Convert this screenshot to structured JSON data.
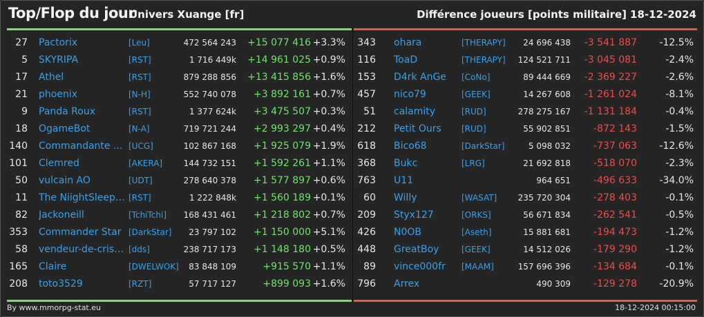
{
  "header": {
    "title": "Top/Flop du jour",
    "universe": "Univers Xuange [fr]",
    "metric": "Différence joueurs [points militaire]",
    "date": "18-12-2024"
  },
  "footer": {
    "credit": "By www.mmorpg-stat.eu",
    "timestamp": "18-12-2024 00:15:00"
  },
  "colors": {
    "positive": "#6fe36a",
    "negative": "#f04b4b",
    "link": "#3aa0e6"
  },
  "top": [
    {
      "rank": "27",
      "name": "Pactorix",
      "ally": "[Leu]",
      "points": "472 564 243",
      "diff": "+15 077 416",
      "pct": "+3.3%"
    },
    {
      "rank": "5",
      "name": "SKYRIPA",
      "ally": "[RST]",
      "points": "1 716 449k",
      "diff": "+14 961 025",
      "pct": "+0.9%"
    },
    {
      "rank": "17",
      "name": "Athel",
      "ally": "[RST]",
      "points": "879 288 856",
      "diff": "+13 415 856",
      "pct": "+1.6%"
    },
    {
      "rank": "21",
      "name": "phoenix",
      "ally": "[N-H]",
      "points": "552 740 078",
      "diff": "+3 892 161",
      "pct": "+0.7%"
    },
    {
      "rank": "9",
      "name": "Panda Roux",
      "ally": "[RST]",
      "points": "1 377 624k",
      "diff": "+3 475 507",
      "pct": "+0.3%"
    },
    {
      "rank": "18",
      "name": "OgameBot",
      "ally": "[N-A]",
      "points": "719 721 244",
      "diff": "+2 993 297",
      "pct": "+0.4%"
    },
    {
      "rank": "140",
      "name": "Commandante ...",
      "ally": "[UCG]",
      "points": "102 867 168",
      "diff": "+1 925 079",
      "pct": "+1.9%"
    },
    {
      "rank": "101",
      "name": "Clemred",
      "ally": "[AKERA]",
      "points": "144 732 151",
      "diff": "+1 592 261",
      "pct": "+1.1%"
    },
    {
      "rank": "50",
      "name": "vulcain AO",
      "ally": "[UDT]",
      "points": "278 640 378",
      "diff": "+1 577 897",
      "pct": "+0.6%"
    },
    {
      "rank": "11",
      "name": "The NiightSleepe...",
      "ally": "[RST]",
      "points": "1 222 848k",
      "diff": "+1 560 189",
      "pct": "+0.1%"
    },
    {
      "rank": "82",
      "name": "Jackoneill",
      "ally": "[TchiTchi]",
      "points": "168 431 461",
      "diff": "+1 218 802",
      "pct": "+0.7%"
    },
    {
      "rank": "353",
      "name": "Commander Star",
      "ally": "[DarkStar]",
      "points": "23 797 102",
      "diff": "+1 150 000",
      "pct": "+5.1%"
    },
    {
      "rank": "58",
      "name": "vendeur-de-crista...",
      "ally": "[dds]",
      "points": "238 717 173",
      "diff": "+1 148 180",
      "pct": "+0.5%"
    },
    {
      "rank": "165",
      "name": "Claire",
      "ally": "[DWELWOK]",
      "points": "83 848 109",
      "diff": "+915 570",
      "pct": "+1.1%"
    },
    {
      "rank": "208",
      "name": "toto3529",
      "ally": "[RZT]",
      "points": "57 717 127",
      "diff": "+899 093",
      "pct": "+1.6%"
    }
  ],
  "flop": [
    {
      "rank": "343",
      "name": "ohara",
      "ally": "[THERAPY]",
      "points": "24 696 438",
      "diff": "-3 541 887",
      "pct": "-12.5%"
    },
    {
      "rank": "116",
      "name": "ToaD",
      "ally": "[THERAPY]",
      "points": "124 521 711",
      "diff": "-3 045 081",
      "pct": "-2.4%"
    },
    {
      "rank": "153",
      "name": "D4rk AnGe",
      "ally": "[CoNo]",
      "points": "89 444 669",
      "diff": "-2 369 227",
      "pct": "-2.6%"
    },
    {
      "rank": "457",
      "name": "nico79",
      "ally": "[GEEK]",
      "points": "14 267 608",
      "diff": "-1 261 024",
      "pct": "-8.1%"
    },
    {
      "rank": "51",
      "name": "calamity",
      "ally": "[RUD]",
      "points": "278 275 167",
      "diff": "-1 131 184",
      "pct": "-0.4%"
    },
    {
      "rank": "212",
      "name": "Petit Ours",
      "ally": "[RUD]",
      "points": "55 902 851",
      "diff": "-872 143",
      "pct": "-1.5%"
    },
    {
      "rank": "618",
      "name": "Bico68",
      "ally": "[DarkStar]",
      "points": "5 098 032",
      "diff": "-737 063",
      "pct": "-12.6%"
    },
    {
      "rank": "368",
      "name": "Bukc",
      "ally": "[LRG]",
      "points": "21 692 818",
      "diff": "-518 070",
      "pct": "-2.3%"
    },
    {
      "rank": "763",
      "name": "U11",
      "ally": "",
      "points": "964 651",
      "diff": "-496 633",
      "pct": "-34.0%"
    },
    {
      "rank": "60",
      "name": "Willy",
      "ally": "[WASAT]",
      "points": "235 720 304",
      "diff": "-278 403",
      "pct": "-0.1%"
    },
    {
      "rank": "209",
      "name": "Styx127",
      "ally": "[ORKS]",
      "points": "56 671 834",
      "diff": "-262 541",
      "pct": "-0.5%"
    },
    {
      "rank": "426",
      "name": "N0OB",
      "ally": "[Aseth]",
      "points": "15 881 681",
      "diff": "-194 473",
      "pct": "-1.2%"
    },
    {
      "rank": "448",
      "name": "GreatBoy",
      "ally": "[GEEK]",
      "points": "14 512 026",
      "diff": "-179 290",
      "pct": "-1.2%"
    },
    {
      "rank": "89",
      "name": "vince000fr",
      "ally": "[MAAM]",
      "points": "157 696 396",
      "diff": "-134 684",
      "pct": "-0.1%"
    },
    {
      "rank": "796",
      "name": "Arrex",
      "ally": "",
      "points": "490 309",
      "diff": "-129 278",
      "pct": "-20.9%"
    }
  ]
}
